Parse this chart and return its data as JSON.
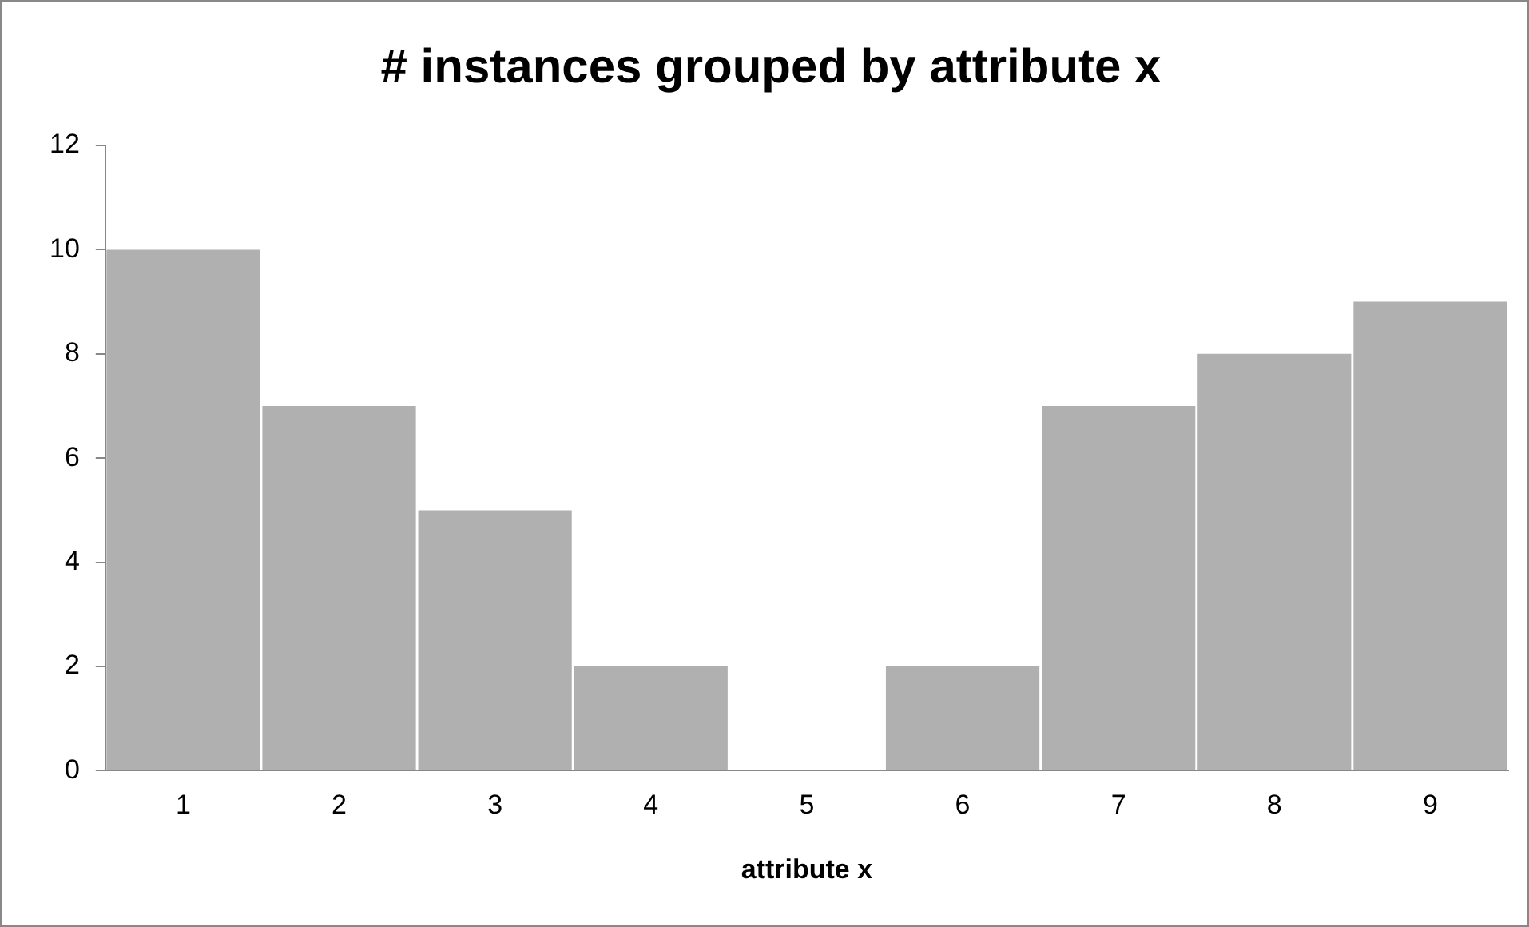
{
  "chart_data": {
    "type": "bar",
    "title": "# instances grouped by attribute x",
    "xlabel": "attribute x",
    "categories": [
      "1",
      "2",
      "3",
      "4",
      "5",
      "6",
      "7",
      "8",
      "9"
    ],
    "values": [
      10,
      7,
      5,
      2,
      0,
      2,
      7,
      8,
      9
    ],
    "color": "#b0b0b0",
    "ylim": [
      0,
      12
    ],
    "yticks": [
      0,
      2,
      4,
      6,
      8,
      10,
      12
    ],
    "grid": false,
    "legend": false
  }
}
